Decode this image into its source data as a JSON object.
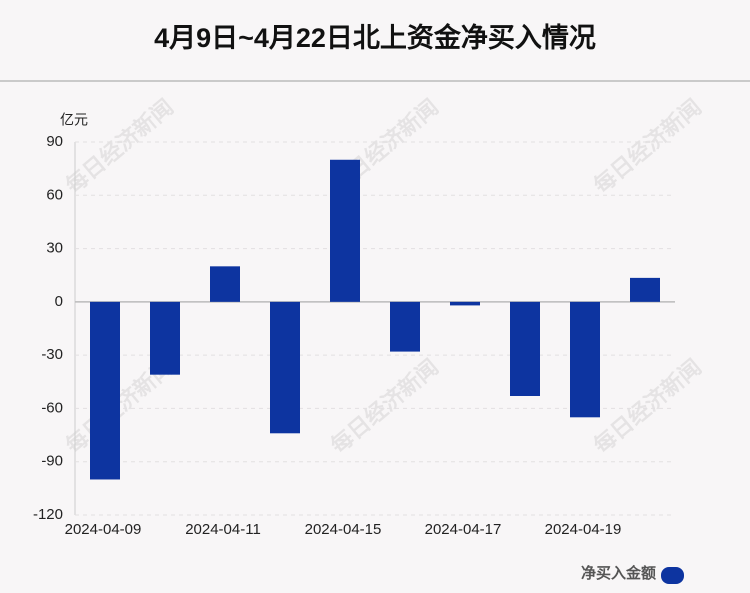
{
  "chart_data": {
    "type": "bar",
    "title": "4月9日~4月22日北上资金净买入情况",
    "y_unit": "亿元",
    "categories": [
      "2024-04-09",
      null,
      "2024-04-11",
      null,
      "2024-04-15",
      null,
      "2024-04-17",
      null,
      "2024-04-19",
      null
    ],
    "series": [
      {
        "name": "净买入金额",
        "color": "#0d34a0",
        "values": [
          -100,
          -41,
          20,
          -74,
          80,
          -28,
          -2,
          -53,
          -65,
          13.5
        ]
      }
    ],
    "ylim": [
      -120,
      90
    ],
    "yticks": [
      -120,
      -90,
      -60,
      -30,
      0,
      30,
      60,
      90
    ],
    "grid": true,
    "watermark": "每日经济新闻"
  }
}
